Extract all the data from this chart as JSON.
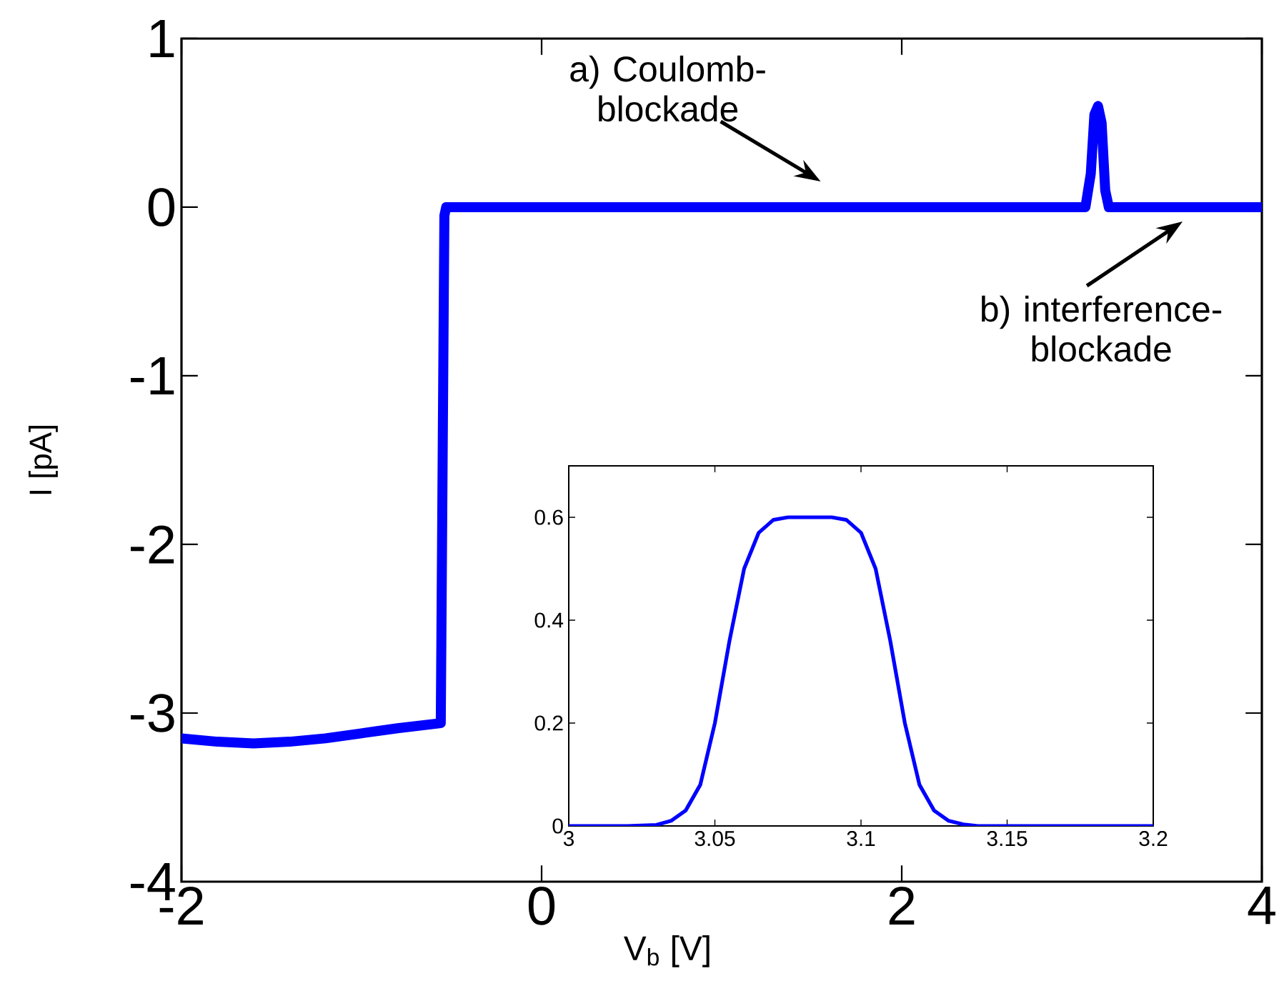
{
  "chart_data": [
    {
      "type": "line",
      "xlabel": "V$_{b}$ [V]",
      "ylabel": "I [pA]",
      "color": "#0000ff",
      "x": [
        -2,
        -1.8,
        -1.6,
        -1.4,
        -1.2,
        -1.0,
        -0.8,
        -0.56,
        -0.54,
        -0.53,
        3.02,
        3.05,
        3.07,
        3.09,
        3.11,
        3.13,
        3.15,
        4
      ],
      "values": [
        -3.15,
        -3.17,
        -3.18,
        -3.17,
        -3.15,
        -3.12,
        -3.09,
        -3.06,
        -0.05,
        0,
        0,
        0.2,
        0.55,
        0.6,
        0.5,
        0.1,
        0,
        0
      ],
      "xlim": [
        -2,
        4
      ],
      "ylim": [
        -4,
        1
      ],
      "xticks": [
        -2,
        0,
        2,
        4
      ],
      "yticks": [
        -4,
        -3,
        -2,
        -1,
        0,
        1
      ],
      "annotations": [
        {
          "text": "a) Coulomb-blockade",
          "x": 1.55,
          "y": 0
        },
        {
          "text": "b) interference-blockade",
          "x": 3.56,
          "y": 0
        }
      ]
    },
    {
      "type": "line",
      "color": "#0000ff",
      "x": [
        3,
        3.02,
        3.03,
        3.035,
        3.04,
        3.045,
        3.05,
        3.055,
        3.06,
        3.065,
        3.07,
        3.075,
        3.08,
        3.09,
        3.095,
        3.1,
        3.105,
        3.11,
        3.115,
        3.12,
        3.125,
        3.13,
        3.135,
        3.14,
        3.16,
        3.2
      ],
      "values": [
        0,
        0,
        0.002,
        0.01,
        0.03,
        0.08,
        0.2,
        0.36,
        0.5,
        0.57,
        0.595,
        0.6,
        0.6,
        0.6,
        0.595,
        0.57,
        0.5,
        0.36,
        0.2,
        0.08,
        0.03,
        0.01,
        0.003,
        0,
        0,
        0
      ],
      "xlim": [
        3,
        3.2
      ],
      "ylim": [
        0,
        0.7
      ],
      "xticks": [
        3,
        3.05,
        3.1,
        3.15,
        3.2
      ],
      "yticks": [
        0,
        0.2,
        0.4,
        0.6
      ]
    }
  ]
}
